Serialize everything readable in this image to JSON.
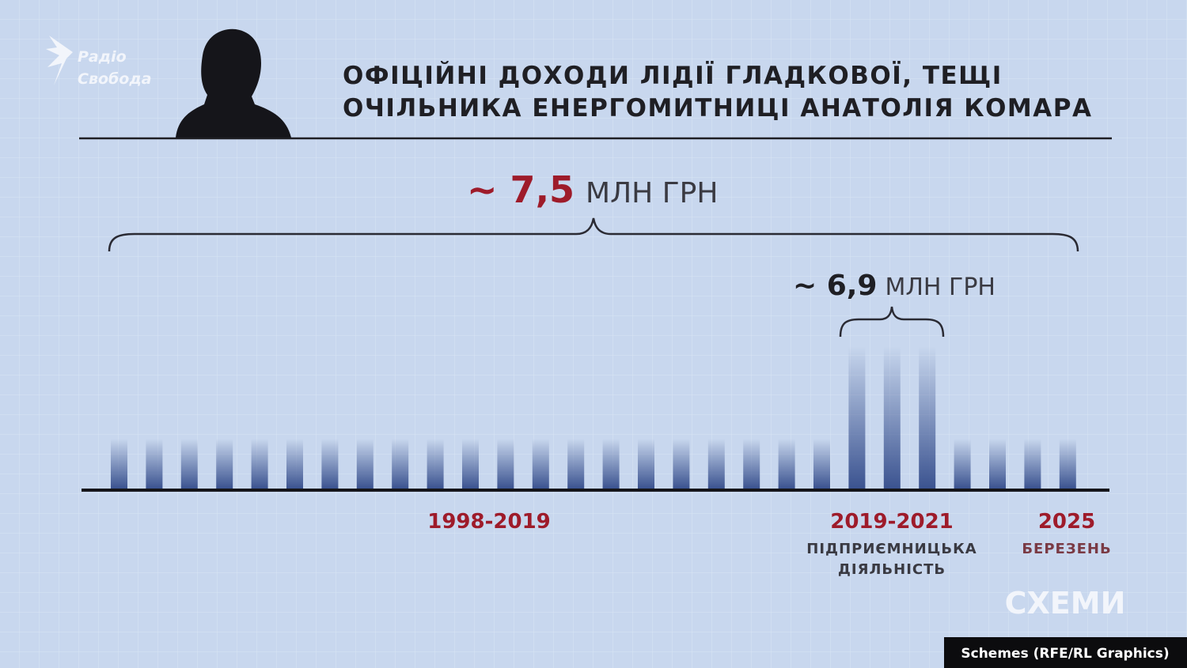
{
  "logo": {
    "line1": "Радіо",
    "line2": "Свобода"
  },
  "title": {
    "line1": "ОФІЦІЙНІ ДОХОДИ ЛІДІЇ ГЛАДКОВОЇ, ТЕЩІ",
    "line2": "ОЧІЛЬНИКА ЕНЕРГОМИТНИЦІ АНАТОЛІЯ КОМАРА"
  },
  "total": {
    "amount": "~ 7,5",
    "unit": "МЛН ГРН"
  },
  "business": {
    "amount": "~ 6,9",
    "unit": "МЛН ГРН"
  },
  "periods": [
    {
      "years": "1998-2019"
    },
    {
      "years": "2019-2021",
      "note1": "ПІДПРИЄМНИЦЬКА",
      "note2": "ДІЯЛЬНІСТЬ"
    },
    {
      "years": "2025",
      "note1": "БЕРЕЗЕНЬ"
    }
  ],
  "brand": "СХЕМИ",
  "credit": "Schemes (RFE/RL Graphics)"
}
